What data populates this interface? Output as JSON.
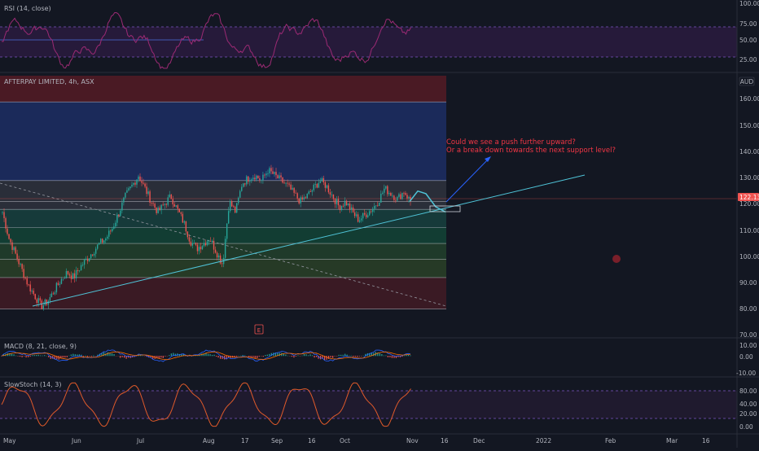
{
  "symbol": {
    "name": "AFTERPAY LIMITED, 4h, ASX",
    "currency": "AUD"
  },
  "price_marker": "122.13",
  "annotation": {
    "line1": "Could we see a push further upward?",
    "line2": "Or a break down towards the next support level?"
  },
  "earnings_marker": "E",
  "x_axis": {
    "labels": [
      "May",
      "Jun",
      "Jul",
      "Aug",
      "17",
      "Sep",
      "16",
      "Oct",
      "Nov",
      "16",
      "Dec",
      "2022",
      "Feb",
      "Mar",
      "16"
    ]
  },
  "rsi": {
    "label": "RSI (14, close)",
    "ticks": [
      "100.00",
      "75.00",
      "50.00",
      "25.00"
    ],
    "upper": 70,
    "lower": 30
  },
  "main": {
    "ticks": [
      "160.00",
      "150.00",
      "140.00",
      "130.00",
      "120.00",
      "110.00",
      "100.00",
      "90.00",
      "80.00",
      "70.00"
    ]
  },
  "macd": {
    "label": "MACD (8, 21, close, 9)",
    "ticks": [
      "10.00",
      "0.00",
      "-10.00"
    ]
  },
  "stoch": {
    "label": "SlowStoch (14, 3)",
    "ticks": [
      "80.00",
      "40.00",
      "20.00",
      "0.00"
    ],
    "upper": 80,
    "lower": 20
  },
  "colors": {
    "background": "#131722",
    "up": "#26a69a",
    "down": "#ef5350",
    "rsi": "#9c2a74",
    "stoch": "#e05a2a",
    "trendline": "#4fc3d7",
    "annotation": "#f23645",
    "arrow": "#2962ff"
  },
  "zones": [
    {
      "from": 160,
      "to": 170,
      "fill": "#4a1a24"
    },
    {
      "from": 130,
      "to": 160,
      "fill": "#1b2a5a"
    },
    {
      "from": 119,
      "to": 130,
      "fill": "#2a2e39"
    },
    {
      "from": 112,
      "to": 119,
      "fill": "#163a3a"
    },
    {
      "from": 106,
      "to": 112,
      "fill": "#123d33"
    },
    {
      "from": 100,
      "to": 106,
      "fill": "#1f3a2a"
    },
    {
      "from": 93,
      "to": 100,
      "fill": "#263a26"
    },
    {
      "from": 81,
      "to": 93,
      "fill": "#3a1a24"
    }
  ],
  "chart_data": {
    "type": "candlestick",
    "title": "AFTERPAY LIMITED, 4h, ASX",
    "ylabel": "AUD",
    "ylim": [
      76,
      170
    ],
    "key_levels": [
      160,
      130,
      122,
      119,
      112,
      106,
      100,
      93,
      81
    ],
    "trend_line": {
      "from": [
        "early May",
        81
      ],
      "to": [
        "mid Dec",
        131
      ]
    },
    "close_path": [
      118,
      108,
      102,
      96,
      90,
      86,
      82,
      84,
      88,
      92,
      95,
      93,
      97,
      100,
      103,
      106,
      108,
      112,
      118,
      124,
      128,
      132,
      127,
      122,
      118,
      121,
      124,
      119,
      114,
      107,
      104,
      106,
      108,
      103,
      98,
      122,
      118,
      129,
      131,
      132,
      130,
      134,
      132,
      130,
      128,
      125,
      122,
      124,
      127,
      130,
      128,
      124,
      120,
      122,
      118,
      115,
      117,
      119,
      122,
      127,
      125,
      123,
      126,
      122
    ],
    "projection": [
      122,
      126,
      125,
      120,
      118
    ]
  }
}
